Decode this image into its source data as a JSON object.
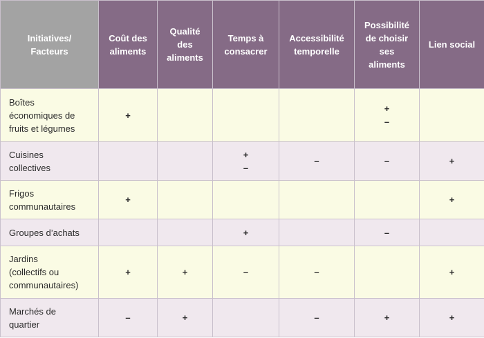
{
  "headers": [
    "Initiatives/\nFacteurs",
    "Coût des\naliments",
    "Qualité\ndes\naliments",
    "Temps à\nconsacrer",
    "Accessibilité\ntemporelle",
    "Possibilité\nde choisir\nses\naliments",
    "Lien social"
  ],
  "rows": [
    {
      "label": "Boîtes\néconomiques de\nfruits et légumes",
      "cells": [
        "+",
        "",
        "",
        "",
        "+\n–",
        ""
      ]
    },
    {
      "label": "Cuisines\ncollectives",
      "cells": [
        "",
        "",
        "+\n–",
        "–",
        "–",
        "+"
      ]
    },
    {
      "label": "Frigos\ncommunautaires",
      "cells": [
        "+",
        "",
        "",
        "",
        "",
        "+"
      ]
    },
    {
      "label": "Groupes d’achats",
      "cells": [
        "",
        "",
        "+",
        "",
        "–",
        ""
      ]
    },
    {
      "label": "Jardins\n(collectifs ou\ncommunautaires)",
      "cells": [
        "+",
        "+",
        "–",
        "–",
        "",
        "+"
      ]
    },
    {
      "label": "Marchés de\nquartier",
      "cells": [
        "–",
        "+",
        "",
        "–",
        "+",
        "+"
      ]
    }
  ]
}
